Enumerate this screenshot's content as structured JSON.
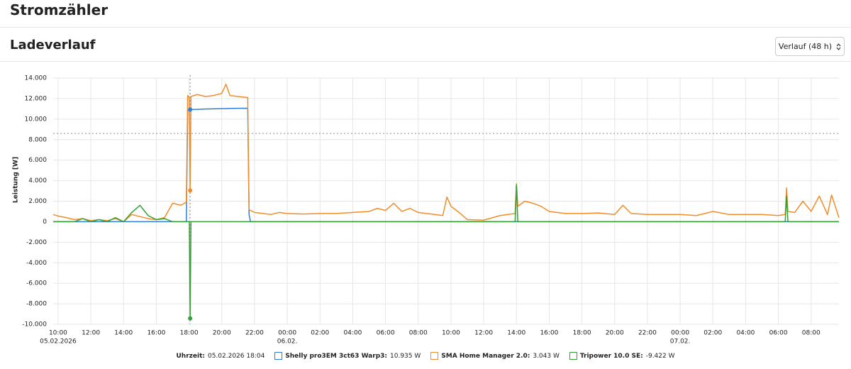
{
  "header": {
    "title": "Stromzähler"
  },
  "section": {
    "title": "Ladeverlauf",
    "select": "Verlauf (48 h)"
  },
  "chart_data": {
    "type": "line",
    "y_label": "Leistung [W]",
    "grid": true,
    "xlim": [
      "2026-02-05T09:42",
      "2026-02-07T09:42"
    ],
    "ylim": [
      -10000,
      14000
    ],
    "yticks": [
      {
        "value": 14000,
        "label": "14.000"
      },
      {
        "value": 12000,
        "label": "12.000"
      },
      {
        "value": 10000,
        "label": "10.000"
      },
      {
        "value": 8000,
        "label": "8.000"
      },
      {
        "value": 6000,
        "label": "6.000"
      },
      {
        "value": 4000,
        "label": "4.000"
      },
      {
        "value": 2000,
        "label": "2.000"
      },
      0,
      {
        "value": -2000,
        "label": "-2.000"
      },
      {
        "value": -4000,
        "label": "-4.000"
      },
      {
        "value": -6000,
        "label": "-6.000"
      },
      {
        "value": -8000,
        "label": "-8.000"
      },
      {
        "value": -10000,
        "label": "-10.000"
      }
    ],
    "xticks": [
      {
        "value": "2026-02-05T10:00",
        "label": "10:00",
        "sublabel": "05.02.2026"
      },
      {
        "value": "2026-02-05T12:00",
        "label": "12:00"
      },
      {
        "value": "2026-02-05T14:00",
        "label": "14:00"
      },
      {
        "value": "2026-02-05T16:00",
        "label": "16:00"
      },
      {
        "value": "2026-02-05T18:00",
        "label": "18:00"
      },
      {
        "value": "2026-02-05T20:00",
        "label": "20:00"
      },
      {
        "value": "2026-02-05T22:00",
        "label": "22:00"
      },
      {
        "value": "2026-02-06T00:00",
        "label": "00:00",
        "sublabel": "06.02."
      },
      {
        "value": "2026-02-06T02:00",
        "label": "02:00"
      },
      {
        "value": "2026-02-06T04:00",
        "label": "04:00"
      },
      {
        "value": "2026-02-06T06:00",
        "label": "06:00"
      },
      {
        "value": "2026-02-06T08:00",
        "label": "08:00"
      },
      {
        "value": "2026-02-06T10:00",
        "label": "10:00"
      },
      {
        "value": "2026-02-06T12:00",
        "label": "12:00"
      },
      {
        "value": "2026-02-06T14:00",
        "label": "14:00"
      },
      {
        "value": "2026-02-06T16:00",
        "label": "16:00"
      },
      {
        "value": "2026-02-06T18:00",
        "label": "18:00"
      },
      {
        "value": "2026-02-06T20:00",
        "label": "20:00"
      },
      {
        "value": "2026-02-06T22:00",
        "label": "22:00"
      },
      {
        "value": "2026-02-07T00:00",
        "label": "00:00",
        "sublabel": "07.02."
      },
      {
        "value": "2026-02-07T02:00",
        "label": "02:00"
      },
      {
        "value": "2026-02-07T04:00",
        "label": "04:00"
      },
      {
        "value": "2026-02-07T06:00",
        "label": "06:00"
      },
      {
        "value": "2026-02-07T08:00",
        "label": "08:00"
      }
    ],
    "x": [
      "2026-02-05T09:42",
      "2026-02-05T10:00",
      "2026-02-05T10:30",
      "2026-02-05T11:00",
      "2026-02-05T11:30",
      "2026-02-05T12:00",
      "2026-02-05T12:30",
      "2026-02-05T13:00",
      "2026-02-05T13:30",
      "2026-02-05T14:00",
      "2026-02-05T14:30",
      "2026-02-05T15:00",
      "2026-02-05T15:30",
      "2026-02-05T16:00",
      "2026-02-05T16:30",
      "2026-02-05T17:00",
      "2026-02-05T17:30",
      "2026-02-05T17:50",
      "2026-02-05T17:55",
      "2026-02-05T18:01",
      "2026-02-05T18:04",
      "2026-02-05T18:07",
      "2026-02-05T18:30",
      "2026-02-05T19:00",
      "2026-02-05T19:30",
      "2026-02-05T20:00",
      "2026-02-05T20:15",
      "2026-02-05T20:30",
      "2026-02-05T21:00",
      "2026-02-05T21:35",
      "2026-02-05T21:40",
      "2026-02-05T21:45",
      "2026-02-05T22:00",
      "2026-02-05T23:00",
      "2026-02-05T23:30",
      "2026-02-06T00:00",
      "2026-02-06T01:00",
      "2026-02-06T02:00",
      "2026-02-06T03:00",
      "2026-02-06T04:00",
      "2026-02-06T05:00",
      "2026-02-06T05:30",
      "2026-02-06T06:00",
      "2026-02-06T06:30",
      "2026-02-06T07:00",
      "2026-02-06T07:30",
      "2026-02-06T08:00",
      "2026-02-06T09:00",
      "2026-02-06T09:30",
      "2026-02-06T09:45",
      "2026-02-06T10:00",
      "2026-02-06T10:30",
      "2026-02-06T11:00",
      "2026-02-06T12:00",
      "2026-02-06T13:00",
      "2026-02-06T13:55",
      "2026-02-06T14:00",
      "2026-02-06T14:05",
      "2026-02-06T14:30",
      "2026-02-06T15:00",
      "2026-02-06T15:30",
      "2026-02-06T16:00",
      "2026-02-06T17:00",
      "2026-02-06T18:00",
      "2026-02-06T19:00",
      "2026-02-06T20:00",
      "2026-02-06T20:30",
      "2026-02-06T21:00",
      "2026-02-06T22:00",
      "2026-02-06T23:00",
      "2026-02-07T00:00",
      "2026-02-07T01:00",
      "2026-02-07T02:00",
      "2026-02-07T03:00",
      "2026-02-07T04:00",
      "2026-02-07T05:00",
      "2026-02-07T06:00",
      "2026-02-07T06:25",
      "2026-02-07T06:30",
      "2026-02-07T06:35",
      "2026-02-07T07:00",
      "2026-02-07T07:30",
      "2026-02-07T08:00",
      "2026-02-07T08:30",
      "2026-02-07T09:00",
      "2026-02-07T09:15",
      "2026-02-07T09:42"
    ],
    "series": [
      {
        "name": "Shelly pro3EM 3ct63 Warp3:",
        "color": "#2f7fd8",
        "values": [
          0,
          0,
          0,
          0,
          0,
          0,
          0,
          0,
          0,
          0,
          0,
          0,
          0,
          0,
          0,
          0,
          0,
          0,
          10800,
          10900,
          10935,
          10940,
          10950,
          10980,
          11000,
          11020,
          11030,
          11040,
          11050,
          11060,
          700,
          0,
          0,
          0,
          0,
          0,
          0,
          0,
          0,
          0,
          0,
          0,
          0,
          0,
          0,
          0,
          0,
          0,
          0,
          0,
          0,
          0,
          0,
          0,
          0,
          0,
          0,
          0,
          0,
          0,
          0,
          0,
          0,
          0,
          0,
          0,
          0,
          0,
          0,
          0,
          0,
          0,
          0,
          0,
          0,
          0,
          0,
          0,
          0,
          0,
          0,
          0,
          0,
          0,
          0,
          0,
          0
        ]
      },
      {
        "name": "SMA Home Manager 2.0:",
        "color": "#f28c28",
        "values": [
          700,
          550,
          400,
          200,
          300,
          100,
          200,
          100,
          300,
          0,
          700,
          500,
          300,
          200,
          400,
          1800,
          1600,
          1900,
          12300,
          12100,
          3043,
          12200,
          12400,
          12200,
          12300,
          12500,
          13400,
          12300,
          12200,
          12100,
          1200,
          1100,
          900,
          700,
          900,
          800,
          750,
          800,
          800,
          900,
          1000,
          1300,
          1100,
          1800,
          1000,
          1300,
          900,
          700,
          600,
          2400,
          1500,
          900,
          200,
          150,
          600,
          800,
          3700,
          1500,
          2000,
          1800,
          1500,
          1000,
          800,
          800,
          850,
          700,
          1600,
          800,
          700,
          700,
          700,
          600,
          1000,
          700,
          700,
          700,
          600,
          700,
          3300,
          1000,
          900,
          2000,
          1000,
          2500,
          700,
          2600,
          400
        ]
      },
      {
        "name": "Tripower 10.0 SE:",
        "color": "#35a035",
        "values": [
          0,
          0,
          0,
          0,
          300,
          0,
          200,
          0,
          400,
          0,
          900,
          1600,
          600,
          200,
          300,
          0,
          0,
          0,
          0,
          0,
          -9422,
          0,
          0,
          0,
          0,
          0,
          0,
          0,
          0,
          0,
          0,
          0,
          0,
          0,
          0,
          0,
          0,
          0,
          0,
          0,
          0,
          0,
          0,
          0,
          0,
          0,
          0,
          0,
          0,
          0,
          0,
          0,
          0,
          0,
          0,
          0,
          3600,
          0,
          0,
          0,
          0,
          0,
          0,
          0,
          0,
          0,
          0,
          0,
          0,
          0,
          0,
          0,
          0,
          0,
          0,
          0,
          0,
          0,
          2500,
          0,
          0,
          0,
          0,
          0,
          0,
          0,
          0
        ]
      }
    ],
    "crosshair": {
      "x": "2026-02-05T18:04",
      "y": 8600
    },
    "tooltip": {
      "label": "Uhrzeit:",
      "time": "05.02.2026 18:04",
      "values": [
        10935,
        3043,
        -9422
      ],
      "value_labels": [
        "10.935 W",
        "3.043 W",
        "-9.422 W"
      ]
    }
  }
}
